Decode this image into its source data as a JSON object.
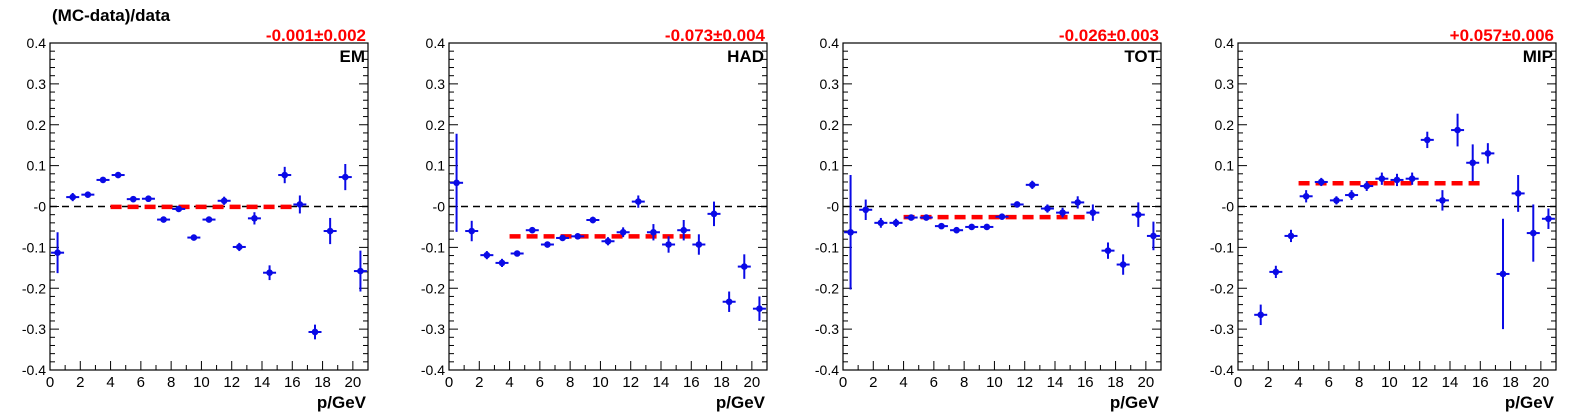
{
  "figure": {
    "ylabel": "(MC-data)/data",
    "xlabel": "p/GeV"
  },
  "chart_data": [
    {
      "type": "scatter",
      "label": "EM",
      "fit_value": "-0.001±0.002",
      "fit": {
        "y": -0.001,
        "x_range": [
          4,
          16
        ]
      },
      "xlabel": "p/GeV",
      "ylabel": "(MC-data)/data",
      "xlim": [
        0,
        21
      ],
      "ylim": [
        -0.4,
        0.4
      ],
      "xticks": [
        "0",
        "2",
        "4",
        "6",
        "8",
        "10",
        "12",
        "14",
        "16",
        "18",
        "20"
      ],
      "yticks": [
        "-0.4",
        "-0.3",
        "-0.2",
        "-0.1",
        "-0",
        "0.1",
        "0.2",
        "0.3",
        "0.4"
      ],
      "points": [
        {
          "x": 0.5,
          "y": -0.113,
          "err": 0.05
        },
        {
          "x": 1.5,
          "y": 0.023,
          "err": 0.01
        },
        {
          "x": 2.5,
          "y": 0.029,
          "err": 0.007
        },
        {
          "x": 3.5,
          "y": 0.065,
          "err": 0.006
        },
        {
          "x": 4.5,
          "y": 0.077,
          "err": 0.006
        },
        {
          "x": 5.5,
          "y": 0.018,
          "err": 0.006
        },
        {
          "x": 6.5,
          "y": 0.019,
          "err": 0.006
        },
        {
          "x": 7.5,
          "y": -0.032,
          "err": 0.006
        },
        {
          "x": 8.5,
          "y": -0.006,
          "err": 0.006
        },
        {
          "x": 9.5,
          "y": -0.076,
          "err": 0.006
        },
        {
          "x": 10.5,
          "y": -0.032,
          "err": 0.007
        },
        {
          "x": 11.5,
          "y": 0.014,
          "err": 0.01
        },
        {
          "x": 12.5,
          "y": -0.099,
          "err": 0.01
        },
        {
          "x": 13.5,
          "y": -0.029,
          "err": 0.015
        },
        {
          "x": 14.5,
          "y": -0.162,
          "err": 0.018
        },
        {
          "x": 15.5,
          "y": 0.077,
          "err": 0.02
        },
        {
          "x": 16.5,
          "y": 0.005,
          "err": 0.022
        },
        {
          "x": 17.5,
          "y": -0.307,
          "err": 0.018
        },
        {
          "x": 18.5,
          "y": -0.06,
          "err": 0.032
        },
        {
          "x": 19.5,
          "y": 0.072,
          "err": 0.032
        },
        {
          "x": 20.5,
          "y": -0.158,
          "err": 0.05
        }
      ]
    },
    {
      "type": "scatter",
      "label": "HAD",
      "fit_value": "-0.073±0.004",
      "fit": {
        "y": -0.073,
        "x_range": [
          4,
          16
        ]
      },
      "xlabel": "p/GeV",
      "xlim": [
        0,
        21
      ],
      "ylim": [
        -0.4,
        0.4
      ],
      "xticks": [
        "0",
        "2",
        "4",
        "6",
        "8",
        "10",
        "12",
        "14",
        "16",
        "18",
        "20"
      ],
      "yticks": [
        "-0.4",
        "-0.3",
        "-0.2",
        "-0.1",
        "-0",
        "0.1",
        "0.2",
        "0.3",
        "0.4"
      ],
      "points": [
        {
          "x": 0.5,
          "y": 0.058,
          "err": 0.12
        },
        {
          "x": 1.5,
          "y": -0.06,
          "err": 0.025
        },
        {
          "x": 2.5,
          "y": -0.119,
          "err": 0.01
        },
        {
          "x": 3.5,
          "y": -0.138,
          "err": 0.01
        },
        {
          "x": 4.5,
          "y": -0.115,
          "err": 0.006
        },
        {
          "x": 5.5,
          "y": -0.058,
          "err": 0.007
        },
        {
          "x": 6.5,
          "y": -0.093,
          "err": 0.006
        },
        {
          "x": 7.5,
          "y": -0.077,
          "err": 0.006
        },
        {
          "x": 8.5,
          "y": -0.073,
          "err": 0.006
        },
        {
          "x": 9.5,
          "y": -0.033,
          "err": 0.008
        },
        {
          "x": 10.5,
          "y": -0.085,
          "err": 0.01
        },
        {
          "x": 11.5,
          "y": -0.063,
          "err": 0.012
        },
        {
          "x": 12.5,
          "y": 0.012,
          "err": 0.015
        },
        {
          "x": 13.5,
          "y": -0.063,
          "err": 0.02
        },
        {
          "x": 14.5,
          "y": -0.093,
          "err": 0.02
        },
        {
          "x": 15.5,
          "y": -0.058,
          "err": 0.025
        },
        {
          "x": 16.5,
          "y": -0.093,
          "err": 0.025
        },
        {
          "x": 17.5,
          "y": -0.018,
          "err": 0.03
        },
        {
          "x": 18.5,
          "y": -0.233,
          "err": 0.025
        },
        {
          "x": 19.5,
          "y": -0.147,
          "err": 0.03
        },
        {
          "x": 20.5,
          "y": -0.25,
          "err": 0.03
        }
      ]
    },
    {
      "type": "scatter",
      "label": "TOT",
      "fit_value": "-0.026±0.003",
      "fit": {
        "y": -0.026,
        "x_range": [
          4,
          16
        ]
      },
      "xlabel": "p/GeV",
      "xlim": [
        0,
        21
      ],
      "ylim": [
        -0.4,
        0.4
      ],
      "xticks": [
        "0",
        "2",
        "4",
        "6",
        "8",
        "10",
        "12",
        "14",
        "16",
        "18",
        "20"
      ],
      "yticks": [
        "-0.4",
        "-0.3",
        "-0.2",
        "-0.1",
        "-0",
        "0.1",
        "0.2",
        "0.3",
        "0.4"
      ],
      "points": [
        {
          "x": 0.5,
          "y": -0.063,
          "err": 0.14
        },
        {
          "x": 1.5,
          "y": -0.008,
          "err": 0.025
        },
        {
          "x": 2.5,
          "y": -0.04,
          "err": 0.012
        },
        {
          "x": 3.5,
          "y": -0.04,
          "err": 0.01
        },
        {
          "x": 4.5,
          "y": -0.027,
          "err": 0.006
        },
        {
          "x": 5.5,
          "y": -0.027,
          "err": 0.006
        },
        {
          "x": 6.5,
          "y": -0.048,
          "err": 0.006
        },
        {
          "x": 7.5,
          "y": -0.058,
          "err": 0.006
        },
        {
          "x": 8.5,
          "y": -0.05,
          "err": 0.006
        },
        {
          "x": 9.5,
          "y": -0.05,
          "err": 0.006
        },
        {
          "x": 10.5,
          "y": -0.025,
          "err": 0.006
        },
        {
          "x": 11.5,
          "y": 0.005,
          "err": 0.006
        },
        {
          "x": 12.5,
          "y": 0.053,
          "err": 0.01
        },
        {
          "x": 13.5,
          "y": -0.005,
          "err": 0.01
        },
        {
          "x": 14.5,
          "y": -0.015,
          "err": 0.012
        },
        {
          "x": 15.5,
          "y": 0.01,
          "err": 0.015
        },
        {
          "x": 16.5,
          "y": -0.015,
          "err": 0.02
        },
        {
          "x": 17.5,
          "y": -0.108,
          "err": 0.02
        },
        {
          "x": 18.5,
          "y": -0.142,
          "err": 0.025
        },
        {
          "x": 19.5,
          "y": -0.02,
          "err": 0.03
        },
        {
          "x": 20.5,
          "y": -0.072,
          "err": 0.035
        }
      ]
    },
    {
      "type": "scatter",
      "label": "MIP",
      "fit_value": "+0.057±0.006",
      "fit": {
        "y": 0.057,
        "x_range": [
          4,
          16
        ]
      },
      "xlabel": "p/GeV",
      "xlim": [
        0,
        21
      ],
      "ylim": [
        -0.4,
        0.4
      ],
      "xticks": [
        "0",
        "2",
        "4",
        "6",
        "8",
        "10",
        "12",
        "14",
        "16",
        "18",
        "20"
      ],
      "yticks": [
        "-0.4",
        "-0.3",
        "-0.2",
        "-0.1",
        "-0",
        "0.1",
        "0.2",
        "0.3",
        "0.4"
      ],
      "points": [
        {
          "x": 1.5,
          "y": -0.265,
          "err": 0.025
        },
        {
          "x": 2.5,
          "y": -0.16,
          "err": 0.015
        },
        {
          "x": 3.5,
          "y": -0.072,
          "err": 0.015
        },
        {
          "x": 4.5,
          "y": 0.025,
          "err": 0.015
        },
        {
          "x": 5.5,
          "y": 0.06,
          "err": 0.01
        },
        {
          "x": 6.5,
          "y": 0.015,
          "err": 0.01
        },
        {
          "x": 7.5,
          "y": 0.028,
          "err": 0.012
        },
        {
          "x": 8.5,
          "y": 0.05,
          "err": 0.012
        },
        {
          "x": 9.5,
          "y": 0.068,
          "err": 0.015
        },
        {
          "x": 10.5,
          "y": 0.065,
          "err": 0.015
        },
        {
          "x": 11.5,
          "y": 0.068,
          "err": 0.015
        },
        {
          "x": 12.5,
          "y": 0.163,
          "err": 0.02
        },
        {
          "x": 13.5,
          "y": 0.015,
          "err": 0.025
        },
        {
          "x": 14.5,
          "y": 0.187,
          "err": 0.04
        },
        {
          "x": 15.5,
          "y": 0.107,
          "err": 0.045
        },
        {
          "x": 16.5,
          "y": 0.13,
          "err": 0.025
        },
        {
          "x": 17.5,
          "y": -0.165,
          "err": 0.135
        },
        {
          "x": 18.5,
          "y": 0.032,
          "err": 0.045
        },
        {
          "x": 19.5,
          "y": -0.065,
          "err": 0.07
        },
        {
          "x": 20.5,
          "y": -0.03,
          "err": 0.025
        }
      ]
    }
  ],
  "colors": {
    "points": "#0a0ae6",
    "fit": "#ff0000",
    "fit_label": "#ff0000",
    "zero_line": "#000000",
    "axis": "#000000"
  }
}
